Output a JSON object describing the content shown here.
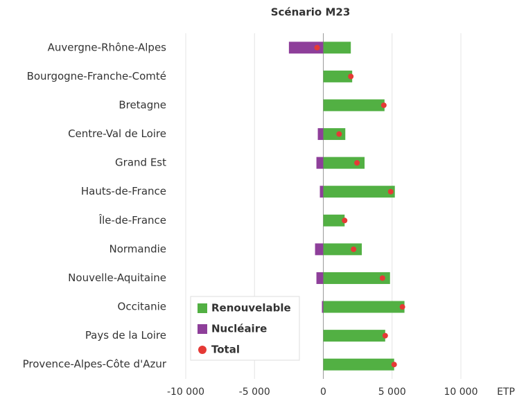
{
  "chart_data": {
    "type": "diverging-bar",
    "title": "Scénario M23",
    "x_label": "ETP",
    "categories": [
      "Auvergne-Rhône-Alpes",
      "Bourgogne-Franche-Comté",
      "Bretagne",
      "Centre-Val de Loire",
      "Grand Est",
      "Hauts-de-France",
      "Île-de-France",
      "Normandie",
      "Nouvelle-Aquitaine",
      "Occitanie",
      "Pays de la Loire",
      "Provence-Alpes-Côte d'Azur"
    ],
    "series": [
      {
        "name": "Renouvelable",
        "color": "#52b043",
        "values": [
          2000,
          2100,
          4450,
          1600,
          3000,
          5200,
          1550,
          2800,
          4850,
          5900,
          4500,
          5150
        ]
      },
      {
        "name": "Nucléaire",
        "color": "#8e3f9a",
        "values": [
          -2500,
          0,
          0,
          -400,
          -500,
          -250,
          0,
          -600,
          -500,
          -100,
          0,
          0
        ]
      },
      {
        "name": "Total",
        "color": "#e53935",
        "marker": "dot",
        "values": [
          -450,
          2000,
          4400,
          1150,
          2450,
          4900,
          1550,
          2200,
          4300,
          5750,
          4500,
          5150
        ]
      }
    ],
    "xlim": [
      -10000,
      10000
    ],
    "xticks": [
      {
        "value": -10000,
        "label": "-10 000"
      },
      {
        "value": -5000,
        "label": "-5 000"
      },
      0,
      {
        "value": 5000,
        "label": "5 000"
      },
      {
        "value": 10000,
        "label": "10 000"
      }
    ],
    "grid": true,
    "legend": "bottom-left"
  }
}
